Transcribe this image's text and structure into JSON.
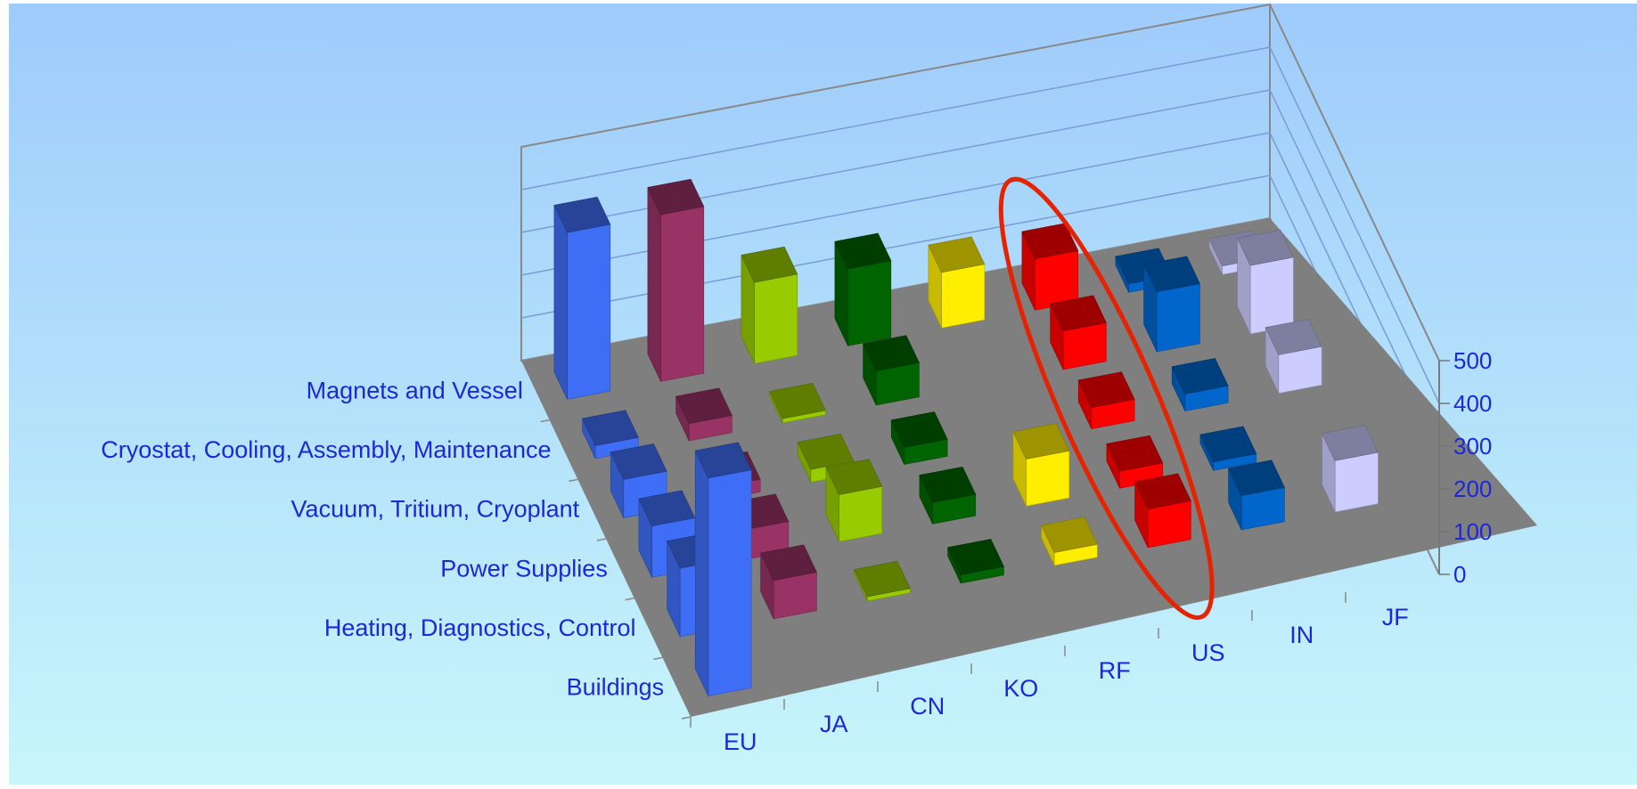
{
  "chart_data": {
    "type": "bar3d",
    "title": "",
    "xlabel": "",
    "ylabel": "",
    "zlim": [
      0,
      500
    ],
    "z_ticks": [
      0,
      100,
      200,
      300,
      400,
      500
    ],
    "columns": [
      "EU",
      "JA",
      "CN",
      "KO",
      "RF",
      "US",
      "IN",
      "JF"
    ],
    "rows": [
      "Magnets and Vessel",
      "Cryostat, Cooling, Assembly, Maintenance",
      "Vacuum, Tritium, Cryoplant",
      "Power Supplies",
      "Heating, Diagnostics, Control",
      "Buildings"
    ],
    "series": [
      {
        "name": "EU",
        "color": "#3f6ef6",
        "values": [
          390,
          30,
          90,
          120,
          160,
          510
        ]
      },
      {
        "name": "JA",
        "color": "#993366",
        "values": [
          390,
          40,
          30,
          70,
          90,
          0
        ]
      },
      {
        "name": "CN",
        "color": "#99cc00",
        "values": [
          190,
          10,
          30,
          110,
          10,
          0
        ]
      },
      {
        "name": "KO",
        "color": "#006400",
        "values": [
          180,
          80,
          40,
          50,
          20,
          0
        ]
      },
      {
        "name": "RF",
        "color": "#ffee00",
        "values": [
          130,
          0,
          0,
          110,
          30,
          0
        ]
      },
      {
        "name": "US",
        "color": "#ff0000",
        "values": [
          120,
          90,
          50,
          40,
          90,
          0
        ]
      },
      {
        "name": "IN",
        "color": "#0066cc",
        "values": [
          20,
          140,
          40,
          20,
          80,
          0
        ]
      },
      {
        "name": "JF",
        "color": "#ccccff",
        "values": [
          20,
          160,
          90,
          0,
          120,
          0
        ]
      }
    ],
    "grid": true,
    "annotation": "red-ellipse-around-RF"
  }
}
